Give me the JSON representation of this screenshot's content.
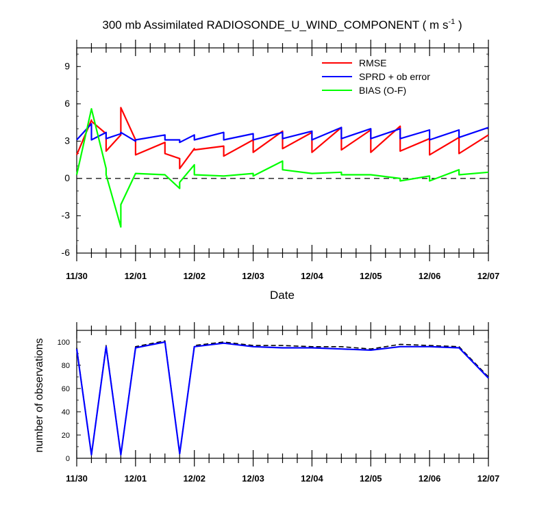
{
  "chart_data": [
    {
      "type": "line",
      "title": "300 mb Assimilated RADIOSONDE_U_WIND_COMPONENT ( m s",
      "title_sup": "-1",
      "title_end": " )",
      "xlabel": "Date",
      "ylabel": "",
      "xlim": [
        0,
        7
      ],
      "ylim": [
        -6,
        10.5
      ],
      "yticks": [
        "-6",
        "-3",
        "0",
        "3",
        "6",
        "9"
      ],
      "xticks": [
        "11/30",
        "12/01",
        "12/02",
        "12/03",
        "12/04",
        "12/05",
        "12/06",
        "12/07"
      ],
      "zero_line": "dashed",
      "legend_position": "top-right",
      "series": [
        {
          "name": "RMSE",
          "color": "#ff0000",
          "x": [
            0,
            0.25,
            0.25,
            0.5,
            0.5,
            0.75,
            0.75,
            1,
            1,
            1.5,
            1.5,
            1.75,
            1.75,
            2,
            2,
            2.5,
            2.5,
            3,
            3,
            3.5,
            3.5,
            4,
            4,
            4.5,
            4.5,
            5,
            5,
            5.5,
            5.5,
            6,
            6,
            6.5,
            6.5,
            7
          ],
          "values": [
            1.9,
            4.7,
            4.6,
            3.6,
            2.2,
            3.5,
            5.7,
            3.1,
            1.9,
            2.9,
            2.0,
            1.6,
            0.8,
            2.4,
            2.3,
            2.6,
            1.8,
            3.1,
            2.1,
            3.8,
            2.4,
            3.7,
            2.1,
            4.1,
            2.3,
            3.9,
            2.1,
            4.2,
            2.2,
            3.2,
            1.9,
            3.3,
            2.0,
            3.5
          ]
        },
        {
          "name": "SPRD + ob error",
          "color": "#0000ff",
          "x": [
            0,
            0.25,
            0.25,
            0.5,
            0.5,
            0.75,
            0.75,
            1,
            1,
            1.5,
            1.5,
            1.75,
            1.75,
            2,
            2,
            2.5,
            2.5,
            3,
            3,
            3.5,
            3.5,
            4,
            4,
            4.5,
            4.5,
            5,
            5,
            5.5,
            5.5,
            6,
            6,
            6.5,
            6.5,
            7
          ],
          "values": [
            3.1,
            4.4,
            3.1,
            3.7,
            3.2,
            3.6,
            3.7,
            3.0,
            3.1,
            3.5,
            3.1,
            3.1,
            2.9,
            3.5,
            3.1,
            3.7,
            3.1,
            3.6,
            3.1,
            3.7,
            3.2,
            3.8,
            3.1,
            4.1,
            3.2,
            4.0,
            3.2,
            4.0,
            3.2,
            3.9,
            3.1,
            3.9,
            3.3,
            4.1
          ]
        },
        {
          "name": "BIAS (O-F)",
          "color": "#00ff00",
          "x": [
            0,
            0.25,
            0.5,
            0.5,
            0.75,
            0.75,
            1,
            1.5,
            1.75,
            1.75,
            2,
            2,
            2.5,
            3,
            3,
            3.5,
            3.5,
            4,
            4.5,
            4.5,
            5,
            5.5,
            5.5,
            6,
            6,
            6.5,
            6.5,
            7
          ],
          "values": [
            0.3,
            5.6,
            0.8,
            0.3,
            -3.9,
            -2.1,
            0.4,
            0.3,
            -0.8,
            -0.3,
            1.1,
            0.3,
            0.2,
            0.4,
            0.2,
            1.4,
            0.7,
            0.4,
            0.5,
            0.3,
            0.3,
            0.0,
            -0.2,
            0.2,
            -0.2,
            0.7,
            0.3,
            0.5
          ]
        }
      ]
    },
    {
      "type": "line",
      "title": "",
      "xlabel": "",
      "ylabel": "number of observations",
      "xlim": [
        0,
        7
      ],
      "ylim": [
        0,
        110
      ],
      "yticks": [
        "0",
        "20",
        "40",
        "60",
        "80",
        "100"
      ],
      "xticks": [
        "11/30",
        "12/01",
        "12/02",
        "12/03",
        "12/04",
        "12/05",
        "12/06",
        "12/07"
      ],
      "series": [
        {
          "style": "dashed",
          "color": "#000000",
          "x": [
            0,
            0.25,
            0.5,
            0.75,
            1,
            1.5,
            1.75,
            2,
            2.5,
            3,
            3.5,
            4,
            4.5,
            5,
            5.5,
            6,
            6.5,
            7
          ],
          "values": [
            95,
            3,
            97,
            3,
            96,
            101,
            4,
            97,
            100,
            97,
            97,
            96,
            96,
            94,
            98,
            97,
            96,
            70
          ]
        },
        {
          "style": "solid",
          "color": "#0000ff",
          "x": [
            0,
            0.25,
            0.5,
            0.75,
            1,
            1.5,
            1.75,
            2,
            2.5,
            3,
            3.5,
            4,
            4.5,
            5,
            5.5,
            6,
            6.5,
            7
          ],
          "values": [
            94,
            3,
            96,
            3,
            95,
            100,
            4,
            96,
            99,
            96,
            95,
            95,
            94,
            93,
            96,
            96,
            95,
            69
          ]
        }
      ]
    }
  ]
}
